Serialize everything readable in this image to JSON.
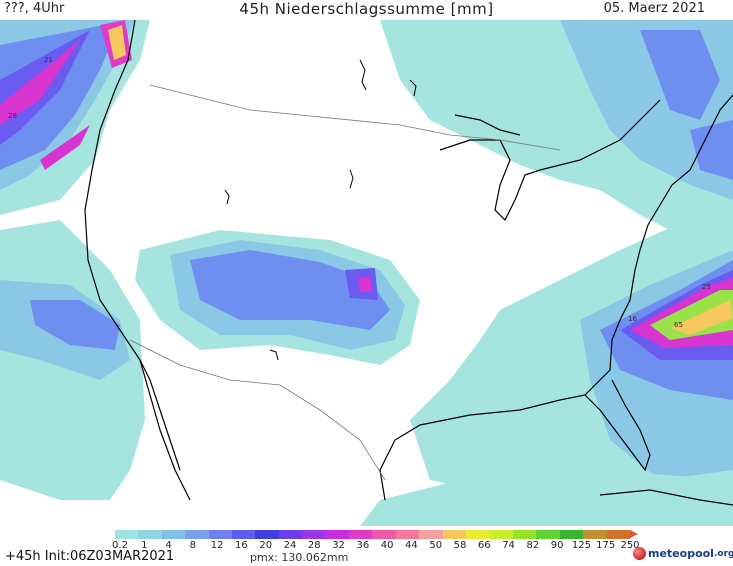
{
  "header": {
    "left": "???, 4Uhr",
    "title": "45h Niederschlagssumme [mm]",
    "date": "05. Maerz 2021"
  },
  "legend": {
    "labels": [
      "0.2",
      "1",
      "4",
      "8",
      "12",
      "16",
      "20",
      "24",
      "28",
      "32",
      "36",
      "40",
      "44",
      "50",
      "58",
      "66",
      "74",
      "82",
      "90",
      "125",
      "175",
      "250"
    ],
    "colors": [
      "#9fe3e0",
      "#8fd5e3",
      "#80bfe8",
      "#7aa0ee",
      "#6f7ff0",
      "#5a5ef0",
      "#3f3ee0",
      "#6a3ef0",
      "#9a36ea",
      "#c82ee0",
      "#e23ac8",
      "#f05aaa",
      "#f5789a",
      "#f6a0a0",
      "#f7c860",
      "#eaea30",
      "#c8ee30",
      "#96e428",
      "#60d430",
      "#36b42c",
      "#c09030",
      "#d0702a"
    ]
  },
  "map_labels": {
    "nw_a": "21",
    "nw_b": "28",
    "se_a": "16",
    "se_b": "25",
    "se_max": "65"
  },
  "footer": {
    "init": "+45h Init:06Z03MAR2021",
    "pmx": "pmx: 130.062mm",
    "logo": "meteopool",
    "logo_tld": ".org"
  },
  "colors": {
    "light": "#a6e4e0",
    "mid": "#8bc8e6",
    "blue": "#6e8ff0",
    "violet": "#6a5cf0",
    "magenta": "#d834d0",
    "green": "#9ae24a"
  }
}
